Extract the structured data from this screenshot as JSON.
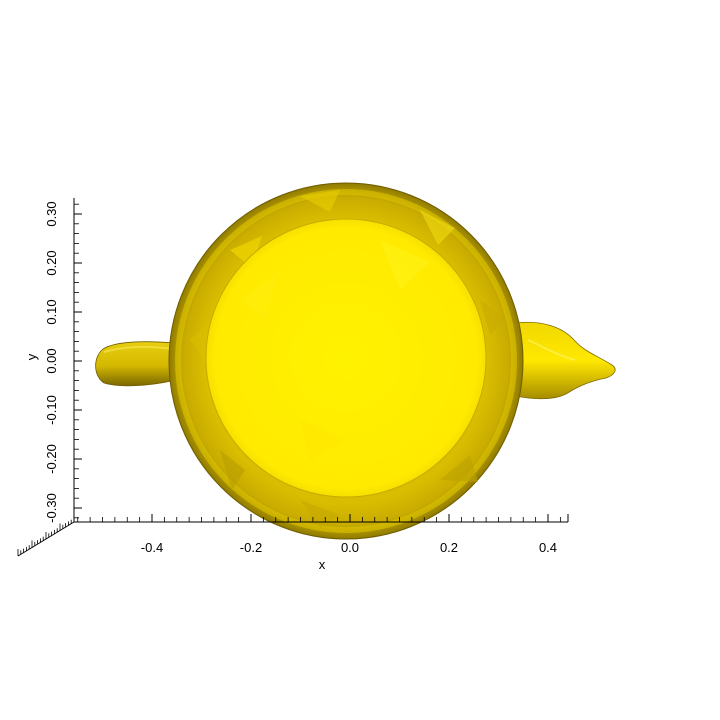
{
  "figure": {
    "mesh_color": "#ffee00",
    "background": "#ffffff"
  },
  "axes": {
    "x": {
      "title": "x",
      "ticks": [
        {
          "value": -0.4,
          "label": "-0.4"
        },
        {
          "value": -0.2,
          "label": "-0.2"
        },
        {
          "value": 0.0,
          "label": "0.0"
        },
        {
          "value": 0.2,
          "label": "0.2"
        },
        {
          "value": 0.4,
          "label": "0.4"
        }
      ]
    },
    "y": {
      "title": "y",
      "ticks": [
        {
          "value": 0.3,
          "label": "0.30"
        },
        {
          "value": 0.2,
          "label": "0.20"
        },
        {
          "value": 0.1,
          "label": "0.10"
        },
        {
          "value": 0.0,
          "label": "0.00"
        },
        {
          "value": -0.1,
          "label": "-0.10"
        },
        {
          "value": -0.2,
          "label": "-0.20"
        },
        {
          "value": -0.3,
          "label": "-0.30"
        }
      ]
    }
  }
}
